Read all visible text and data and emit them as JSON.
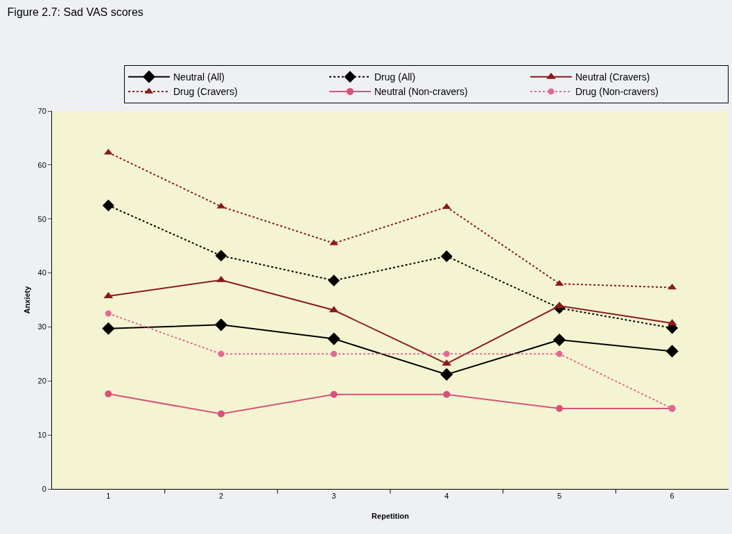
{
  "chart_data": {
    "type": "line",
    "title": "Figure 2.7: Sad VAS scores",
    "xlabel": "Repetition",
    "ylabel": "Anxiety",
    "categories": [
      "1",
      "2",
      "3",
      "4",
      "5",
      "6"
    ],
    "ylim": [
      0,
      70
    ],
    "yticks": [
      0,
      10,
      20,
      30,
      40,
      50,
      60,
      70
    ],
    "grid": false,
    "legend": "top right",
    "series": [
      {
        "name": "Neutral (All)",
        "color": "#000000",
        "marker": "diamond",
        "line_style": "solid",
        "values": [
          29.7,
          30.4,
          27.8,
          21.2,
          27.6,
          25.5
        ]
      },
      {
        "name": "Drug (All)",
        "color": "#000000",
        "marker": "diamond",
        "line_style": "dotted",
        "values": [
          52.5,
          43.2,
          38.6,
          43.1,
          33.5,
          29.8
        ]
      },
      {
        "name": "Neutral (Cravers)",
        "color": "#8b1a1a",
        "marker": "triangle",
        "line_style": "solid",
        "values": [
          35.7,
          38.7,
          33.1,
          23.2,
          33.9,
          30.7
        ]
      },
      {
        "name": "Drug (Cravers)",
        "color": "#8b1a1a",
        "marker": "triangle",
        "line_style": "dotted",
        "values": [
          62.3,
          52.3,
          45.5,
          52.2,
          38.0,
          37.3
        ]
      },
      {
        "name": "Neutral (Non-cravers)",
        "color": "#d9507a",
        "marker": "circle",
        "line_style": "solid",
        "values": [
          17.6,
          13.9,
          17.5,
          17.5,
          14.9,
          14.9
        ]
      },
      {
        "name": "Drug (Non-cravers)",
        "color": "#e06a90",
        "marker": "circle",
        "line_style": "dotted",
        "values": [
          32.5,
          25.0,
          25.0,
          25.0,
          25.0,
          14.9
        ]
      }
    ]
  }
}
